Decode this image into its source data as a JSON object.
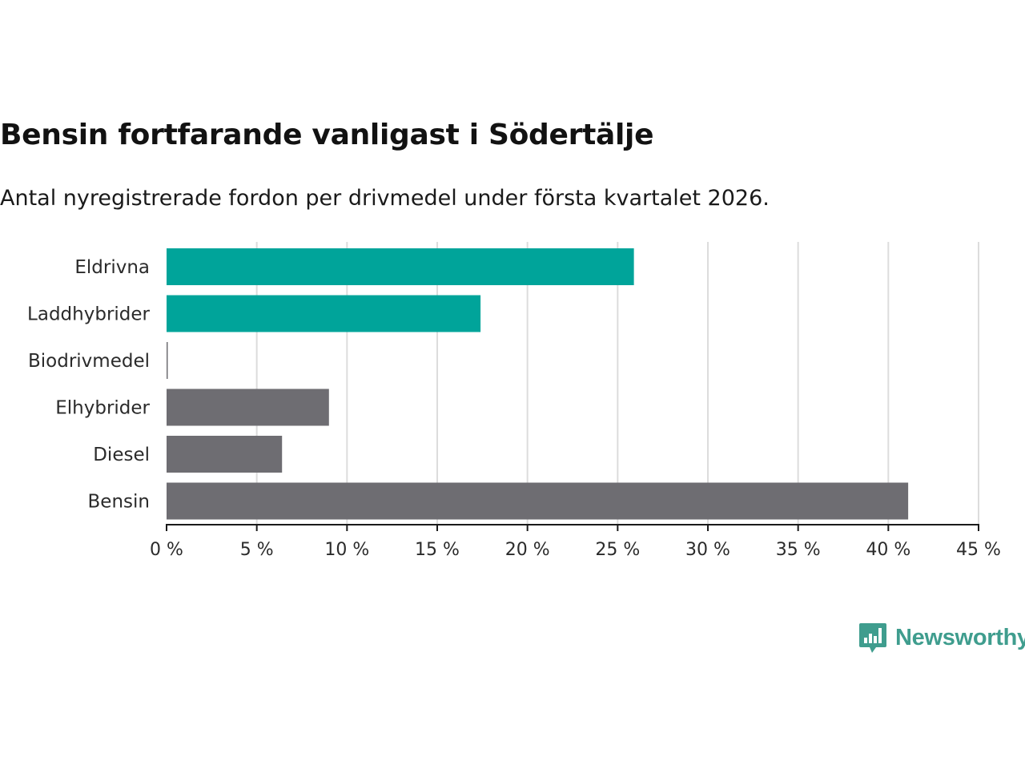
{
  "chart_data": {
    "type": "bar",
    "orientation": "horizontal",
    "title": "Bensin fortfarande vanligast i Södertälje",
    "subtitle": "Antal nyregistrerade fordon per drivmedel under första kvartalet 2026.",
    "categories": [
      "Eldrivna",
      "Laddhybrider",
      "Biodrivmedel",
      "Elhybrider",
      "Diesel",
      "Bensin"
    ],
    "values": [
      25.9,
      17.4,
      0.05,
      9.0,
      6.4,
      41.1
    ],
    "bar_colors": [
      "#00a49a",
      "#00a49a",
      "#6e6d72",
      "#6e6d72",
      "#6e6d72",
      "#6e6d72"
    ],
    "xlim": [
      0,
      45
    ],
    "xticks": [
      0,
      5,
      10,
      15,
      20,
      25,
      30,
      35,
      40,
      45
    ],
    "xtick_labels": [
      "0 %",
      "5 %",
      "10 %",
      "15 %",
      "20 %",
      "25 %",
      "30 %",
      "35 %",
      "40 %",
      "45 %"
    ],
    "xlabel": "",
    "ylabel": "",
    "grid": true
  },
  "brand": {
    "name": "Newsworthy",
    "logo_icon": "bar-chart-speech-bubble-icon",
    "color": "#3f9d8e"
  }
}
